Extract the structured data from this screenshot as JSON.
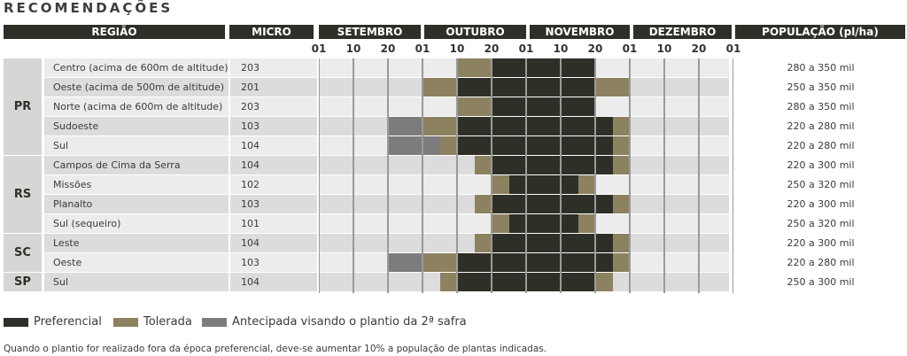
{
  "title": "RECOMENDAÇÕES",
  "headers": {
    "regiao": "REGIÃO",
    "micro": "MICRO",
    "months": [
      "SETEMBRO",
      "OUTUBRO",
      "NOVEMBRO",
      "DEZEMBRO"
    ],
    "populacao": "POPULAÇÃO (pl/ha)"
  },
  "ticks": [
    "01",
    "10",
    "20",
    "01",
    "10",
    "20",
    "01",
    "10",
    "20",
    "01",
    "10",
    "20",
    "01"
  ],
  "colors": {
    "preferencial": "#2e2f26",
    "tolerada": "#8c8260",
    "antecipada": "#7c7c7e"
  },
  "states": [
    {
      "code": "PR",
      "rows": [
        {
          "regiao": "Centro (acima de 600m de altitude)",
          "micro": "203",
          "populacao": "280 a 350 mil",
          "schedule": [
            [
              "tolerada",
              4,
              5
            ],
            [
              "preferencial",
              5,
              8
            ]
          ]
        },
        {
          "regiao": "Oeste (acima de 500m de altitude)",
          "micro": "201",
          "populacao": "250 a 350 mil",
          "schedule": [
            [
              "tolerada",
              3,
              4
            ],
            [
              "preferencial",
              4,
              8
            ],
            [
              "tolerada",
              8,
              9
            ]
          ]
        },
        {
          "regiao": "Norte (acima de 600m de altitude)",
          "micro": "203",
          "populacao": "280 a 350 mil",
          "schedule": [
            [
              "tolerada",
              4,
              5
            ],
            [
              "preferencial",
              5,
              8
            ]
          ]
        },
        {
          "regiao": "Sudoeste",
          "micro": "103",
          "populacao": "220 a 280 mil",
          "schedule": [
            [
              "antecipada",
              2,
              3
            ],
            [
              "tolerada",
              3,
              4
            ],
            [
              "preferencial",
              4,
              8.5
            ],
            [
              "tolerada",
              8.5,
              9
            ]
          ]
        },
        {
          "regiao": "Sul",
          "micro": "104",
          "populacao": "220 a 280 mil",
          "schedule": [
            [
              "antecipada",
              2,
              3.5
            ],
            [
              "tolerada",
              3.5,
              4
            ],
            [
              "preferencial",
              4,
              8.5
            ],
            [
              "tolerada",
              8.5,
              9
            ]
          ]
        }
      ]
    },
    {
      "code": "RS",
      "rows": [
        {
          "regiao": "Campos de Cima da Serra",
          "micro": "104",
          "populacao": "220 a 300 mil",
          "schedule": [
            [
              "tolerada",
              4.5,
              5
            ],
            [
              "preferencial",
              5,
              8.5
            ],
            [
              "tolerada",
              8.5,
              9
            ]
          ]
        },
        {
          "regiao": "Missões",
          "micro": "102",
          "populacao": "250 a 320 mil",
          "schedule": [
            [
              "tolerada",
              5,
              5.5
            ],
            [
              "preferencial",
              5.5,
              7.5
            ],
            [
              "tolerada",
              7.5,
              8
            ]
          ]
        },
        {
          "regiao": "Planalto",
          "micro": "103",
          "populacao": "220 a 300 mil",
          "schedule": [
            [
              "tolerada",
              4.5,
              5
            ],
            [
              "preferencial",
              5,
              8.5
            ],
            [
              "tolerada",
              8.5,
              9
            ]
          ]
        },
        {
          "regiao": "Sul (sequeiro)",
          "micro": "101",
          "populacao": "250 a 320 mil",
          "schedule": [
            [
              "tolerada",
              5,
              5.5
            ],
            [
              "preferencial",
              5.5,
              7.5
            ],
            [
              "tolerada",
              7.5,
              8
            ]
          ]
        }
      ]
    },
    {
      "code": "SC",
      "rows": [
        {
          "regiao": "Leste",
          "micro": "104",
          "populacao": "220 a 300 mil",
          "schedule": [
            [
              "tolerada",
              4.5,
              5
            ],
            [
              "preferencial",
              5,
              8.5
            ],
            [
              "tolerada",
              8.5,
              9
            ]
          ]
        },
        {
          "regiao": "Oeste",
          "micro": "103",
          "populacao": "220 a 280 mil",
          "schedule": [
            [
              "antecipada",
              2,
              3
            ],
            [
              "tolerada",
              3,
              4
            ],
            [
              "preferencial",
              4,
              8.5
            ],
            [
              "tolerada",
              8.5,
              9
            ]
          ]
        }
      ]
    },
    {
      "code": "SP",
      "rows": [
        {
          "regiao": "Sul",
          "micro": "104",
          "populacao": "250 a 300 mil",
          "schedule": [
            [
              "tolerada",
              3.5,
              4
            ],
            [
              "preferencial",
              4,
              8
            ],
            [
              "tolerada",
              8,
              8.5
            ]
          ]
        }
      ]
    }
  ],
  "legend": [
    {
      "key": "preferencial",
      "label": "Preferencial"
    },
    {
      "key": "tolerada",
      "label": "Tolerada"
    },
    {
      "key": "antecipada",
      "label": "Antecipada visando o plantio da 2ª safra"
    }
  ],
  "footnote": "Quando o plantio for realizado fora da época preferencial, deve-se aumentar 10% a população de plantas indicadas."
}
